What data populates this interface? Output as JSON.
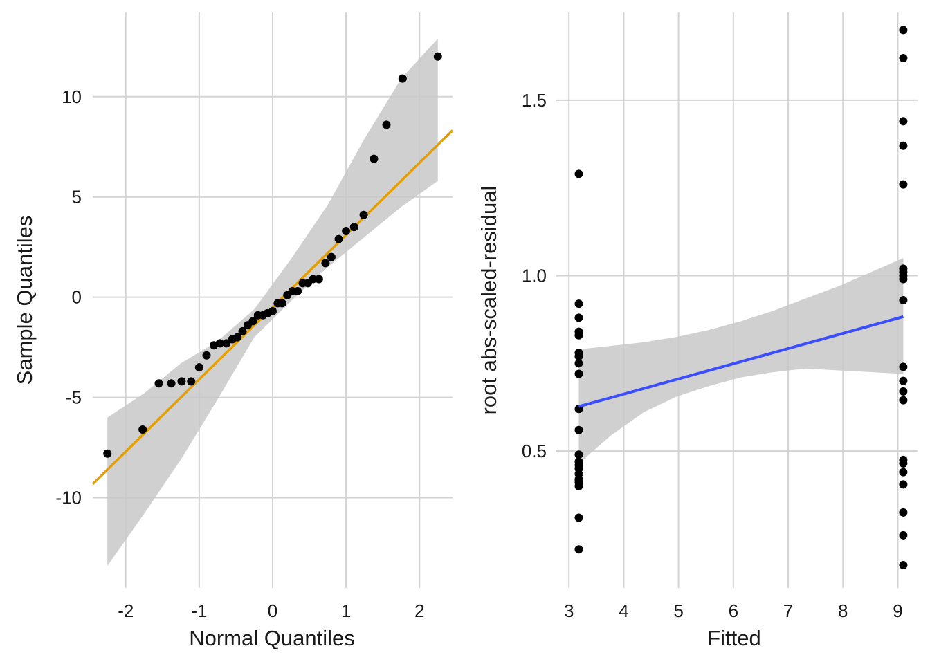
{
  "chart_data": [
    {
      "type": "scatter",
      "title": "",
      "xlabel": "Normal Quantiles",
      "ylabel": "Sample Quantiles",
      "xlim": [
        -2.45,
        2.45
      ],
      "ylim": [
        -14.5,
        14.2
      ],
      "xticks": [
        -2,
        -1,
        0,
        1,
        2
      ],
      "xtick_labels": [
        "-2",
        "-1",
        "0",
        "1",
        "2"
      ],
      "yticks": [
        -10,
        -5,
        0,
        5,
        10
      ],
      "ytick_labels": [
        "-10",
        "-5",
        "0",
        "5",
        "10"
      ],
      "grid": true,
      "line_color": "#E69F00",
      "band_color": "#c8c8c8",
      "point_color": "#000000",
      "reference_line": {
        "intercept": -0.5,
        "slope": 3.6
      },
      "confidence_band": {
        "x": [
          -2.25,
          -1.75,
          -1.25,
          -0.75,
          -0.25,
          0.25,
          0.75,
          1.25,
          1.75,
          2.25
        ],
        "lower": [
          -13.4,
          -10.8,
          -8.1,
          -5.1,
          -2.0,
          -0.2,
          1.5,
          3.0,
          4.5,
          5.8
        ],
        "upper": [
          -6.0,
          -4.8,
          -3.3,
          -2.2,
          -0.6,
          1.9,
          4.6,
          7.9,
          10.9,
          12.9
        ]
      },
      "points": {
        "x": [
          -2.25,
          -1.77,
          -1.55,
          -1.38,
          -1.24,
          -1.11,
          -1.0,
          -0.9,
          -0.8,
          -0.72,
          -0.63,
          -0.55,
          -0.48,
          -0.41,
          -0.34,
          -0.27,
          -0.2,
          -0.13,
          -0.07,
          0.0,
          0.07,
          0.13,
          0.2,
          0.27,
          0.34,
          0.41,
          0.48,
          0.55,
          0.63,
          0.72,
          0.8,
          0.9,
          1.0,
          1.11,
          1.24,
          1.38,
          1.55,
          1.77,
          2.25
        ],
        "y": [
          -7.8,
          -6.6,
          -4.3,
          -4.3,
          -4.2,
          -4.2,
          -3.5,
          -2.9,
          -2.4,
          -2.3,
          -2.3,
          -2.1,
          -2.0,
          -1.7,
          -1.4,
          -1.2,
          -0.9,
          -0.9,
          -0.8,
          -0.7,
          -0.3,
          -0.3,
          0.1,
          0.3,
          0.3,
          0.7,
          0.7,
          0.9,
          0.9,
          1.7,
          2.0,
          2.9,
          3.3,
          3.5,
          4.1,
          6.9,
          8.6,
          10.9,
          12.0
        ]
      }
    },
    {
      "type": "scatter",
      "title": "",
      "xlabel": "Fitted",
      "ylabel": "root abs-scaled-residual",
      "xlim": [
        2.77,
        9.36
      ],
      "ylim": [
        0.11,
        1.75
      ],
      "xticks": [
        3,
        4,
        5,
        6,
        7,
        8,
        9
      ],
      "xtick_labels": [
        "3",
        "4",
        "5",
        "6",
        "7",
        "8",
        "9"
      ],
      "yticks": [
        0.5,
        1.0,
        1.5
      ],
      "ytick_labels": [
        "0.5",
        "1.0",
        "1.5"
      ],
      "grid": true,
      "line_color": "#3A4EFF",
      "band_color": "#c8c8c8",
      "point_color": "#000000",
      "fit_line": {
        "x": [
          3.18,
          9.1
        ],
        "y": [
          0.627,
          0.883
        ]
      },
      "confidence_band": {
        "x": [
          3.18,
          3.77,
          4.36,
          4.96,
          5.55,
          6.14,
          6.73,
          7.32,
          7.92,
          8.51,
          9.1
        ],
        "lower": [
          0.465,
          0.545,
          0.61,
          0.655,
          0.685,
          0.71,
          0.725,
          0.735,
          0.73,
          0.725,
          0.72
        ],
        "upper": [
          0.79,
          0.8,
          0.81,
          0.825,
          0.845,
          0.87,
          0.9,
          0.935,
          0.97,
          1.01,
          1.05
        ]
      },
      "points": {
        "x": [
          3.18,
          3.18,
          3.18,
          3.18,
          3.18,
          3.18,
          3.18,
          3.18,
          3.18,
          3.18,
          3.18,
          3.18,
          3.18,
          3.18,
          3.18,
          3.18,
          3.18,
          3.18,
          3.18,
          3.18,
          3.18,
          3.18,
          9.1,
          9.1,
          9.1,
          9.1,
          9.1,
          9.1,
          9.1,
          9.1,
          9.1,
          9.1,
          9.1,
          9.1,
          9.1,
          9.1,
          9.1,
          9.1,
          9.1,
          9.1,
          9.1,
          9.1,
          9.1
        ],
        "y": [
          1.29,
          0.92,
          0.88,
          0.84,
          0.83,
          0.78,
          0.77,
          0.75,
          0.72,
          0.62,
          0.56,
          0.49,
          0.47,
          0.46,
          0.45,
          0.42,
          0.41,
          0.4,
          0.31,
          0.22,
          0.435,
          0.415,
          1.7,
          1.62,
          1.44,
          1.37,
          1.26,
          1.02,
          1.01,
          1.0,
          0.99,
          0.93,
          0.74,
          0.7,
          0.67,
          0.645,
          0.465,
          0.44,
          0.325,
          0.26,
          0.175,
          0.405,
          0.475
        ]
      }
    }
  ]
}
